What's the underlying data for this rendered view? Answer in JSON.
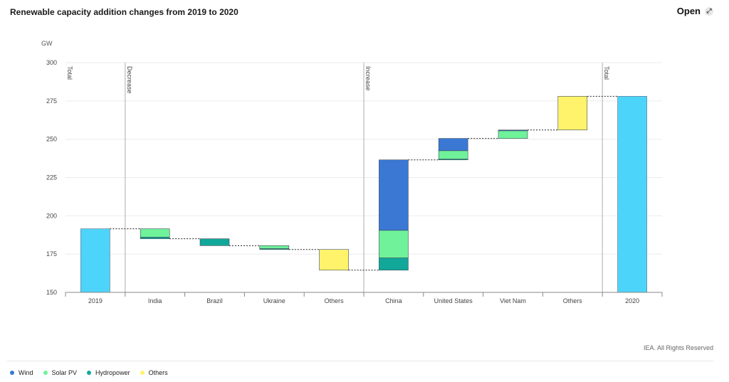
{
  "header": {
    "title": "Renewable capacity addition changes from 2019 to 2020",
    "open_label": "Open",
    "open_icon": "expand-icon"
  },
  "footer": {
    "copyright": "IEA. All Rights Reserved"
  },
  "legend": [
    {
      "name": "Wind",
      "color": "#3a78d4"
    },
    {
      "name": "Solar PV",
      "color": "#6ff29a"
    },
    {
      "name": "Hydropower",
      "color": "#11a89a"
    },
    {
      "name": "Others",
      "color": "#fff36b"
    }
  ],
  "chart_data": {
    "type": "bar",
    "subtype": "waterfall",
    "title": "Renewable capacity addition changes from 2019 to 2020",
    "ylabel": "GW",
    "ylim": [
      150,
      300
    ],
    "yticks": [
      150,
      175,
      200,
      225,
      250,
      275,
      300
    ],
    "grid": true,
    "legend_position": "bottom-left",
    "categories": [
      "2019",
      "India",
      "Brazil",
      "Ukraine",
      "Others",
      "China",
      "United States",
      "Viet Nam",
      "Others",
      "2020"
    ],
    "sections": [
      {
        "label": "Total",
        "before": "2019"
      },
      {
        "label": "Decrease",
        "before": "India"
      },
      {
        "label": "Increase",
        "before": "China"
      },
      {
        "label": "Total",
        "before": "2020"
      }
    ],
    "total_color": "#4dd4fb",
    "colors": {
      "Wind": "#3a78d4",
      "Solar PV": "#6ff29a",
      "Hydropower": "#11a89a",
      "Others": "#fff36b"
    },
    "bars": [
      {
        "category": "2019",
        "kind": "total",
        "value": 191.5
      },
      {
        "category": "India",
        "kind": "decrease",
        "start": 191.5,
        "components": [
          {
            "series": "Solar PV",
            "value": -5.5
          },
          {
            "series": "Hydropower",
            "value": -1
          }
        ]
      },
      {
        "category": "Brazil",
        "kind": "decrease",
        "start": 185,
        "components": [
          {
            "series": "Hydropower",
            "value": -4.5
          }
        ]
      },
      {
        "category": "Ukraine",
        "kind": "decrease",
        "start": 180.5,
        "components": [
          {
            "series": "Solar PV",
            "value": -2
          },
          {
            "series": "Hydropower",
            "value": -0.5
          }
        ]
      },
      {
        "category": "Others",
        "kind": "decrease",
        "start": 178,
        "components": [
          {
            "series": "Others",
            "value": -13.5
          }
        ]
      },
      {
        "category": "China",
        "kind": "increase",
        "start": 164.5,
        "components": [
          {
            "series": "Hydropower",
            "value": 8
          },
          {
            "series": "Solar PV",
            "value": 18
          },
          {
            "series": "Wind",
            "value": 46
          }
        ]
      },
      {
        "category": "United States",
        "kind": "increase",
        "start": 236.5,
        "components": [
          {
            "series": "Hydropower",
            "value": 0.5
          },
          {
            "series": "Solar PV",
            "value": 5.5
          },
          {
            "series": "Wind",
            "value": 8
          }
        ]
      },
      {
        "category": "Viet Nam",
        "kind": "increase",
        "start": 250.5,
        "components": [
          {
            "series": "Solar PV",
            "value": 5
          },
          {
            "series": "Wind",
            "value": 0.5
          }
        ]
      },
      {
        "category": "Others",
        "kind": "increase",
        "start": 256,
        "components": [
          {
            "series": "Others",
            "value": 22
          }
        ]
      },
      {
        "category": "2020",
        "kind": "total",
        "value": 278
      }
    ]
  }
}
